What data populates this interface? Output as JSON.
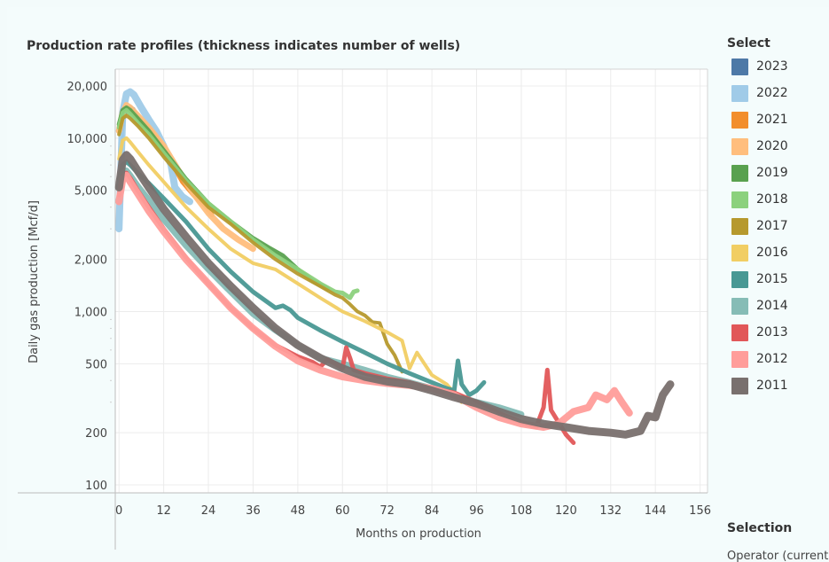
{
  "title": "Production rate profiles (thickness indicates number of wells)",
  "legend": {
    "title": "Select",
    "items": [
      {
        "label": "2023",
        "color": "#4e79a7"
      },
      {
        "label": "2022",
        "color": "#a0cbe8"
      },
      {
        "label": "2021",
        "color": "#f28e2b"
      },
      {
        "label": "2020",
        "color": "#ffbe7d"
      },
      {
        "label": "2019",
        "color": "#59a14f"
      },
      {
        "label": "2018",
        "color": "#8cd17d"
      },
      {
        "label": "2017",
        "color": "#b6992d"
      },
      {
        "label": "2016",
        "color": "#f1ce63"
      },
      {
        "label": "2015",
        "color": "#499894"
      },
      {
        "label": "2014",
        "color": "#86bcb6"
      },
      {
        "label": "2013",
        "color": "#e15759"
      },
      {
        "label": "2012",
        "color": "#ff9d9a"
      },
      {
        "label": "2011",
        "color": "#79706e"
      }
    ]
  },
  "selection": {
    "title": "Selection",
    "subtitle": "Operator (current"
  },
  "chart_data": {
    "type": "line",
    "title": "Production rate profiles (thickness indicates number of wells)",
    "xlabel": "Months on production",
    "ylabel": "Daily gas production [Mcf/d]",
    "y_scale": "log",
    "xlim": [
      -1,
      158
    ],
    "ylim": [
      90,
      25000
    ],
    "x_ticks": [
      0,
      12,
      24,
      36,
      48,
      60,
      72,
      84,
      96,
      108,
      120,
      132,
      144,
      156
    ],
    "x_tick_labels": [
      "0",
      "12",
      "24",
      "36",
      "48",
      "60",
      "72",
      "84",
      "96",
      "108",
      "120",
      "132",
      "144",
      "156"
    ],
    "y_ticks": [
      100,
      200,
      500,
      1000,
      2000,
      5000,
      10000,
      20000
    ],
    "y_tick_labels": [
      "100",
      "200",
      "500",
      "1,000",
      "2,000",
      "5,000",
      "10,000",
      "20,000"
    ],
    "grid": true,
    "legend_position": "right",
    "series": [
      {
        "name": "2011",
        "color": "#79706e",
        "width": 9,
        "x": [
          0,
          1,
          2,
          3,
          5,
          8,
          12,
          18,
          24,
          30,
          36,
          42,
          48,
          54,
          60,
          66,
          72,
          78,
          84,
          90,
          96,
          102,
          108,
          114,
          120,
          126,
          132,
          136,
          140,
          142,
          144,
          146,
          148
        ],
        "y": [
          5200,
          7500,
          8000,
          7600,
          6500,
          5200,
          3900,
          2700,
          1900,
          1400,
          1050,
          800,
          640,
          540,
          470,
          420,
          395,
          380,
          350,
          320,
          295,
          265,
          240,
          225,
          215,
          205,
          200,
          195,
          205,
          250,
          245,
          330,
          380
        ]
      },
      {
        "name": "2012",
        "color": "#ff9d9a",
        "width": 8,
        "x": [
          0,
          1,
          2,
          3,
          5,
          8,
          12,
          18,
          24,
          30,
          36,
          42,
          48,
          54,
          60,
          66,
          72,
          78,
          84,
          90,
          96,
          102,
          108,
          114,
          118,
          122,
          126,
          128,
          131,
          133,
          135,
          137
        ],
        "y": [
          4300,
          5800,
          6100,
          5600,
          4800,
          3800,
          2900,
          2000,
          1450,
          1050,
          800,
          630,
          520,
          460,
          420,
          400,
          385,
          375,
          360,
          330,
          280,
          245,
          225,
          215,
          225,
          265,
          280,
          330,
          310,
          350,
          300,
          260
        ]
      },
      {
        "name": "2013",
        "color": "#e15759",
        "width": 5,
        "x": [
          0,
          1,
          2,
          3,
          5,
          8,
          12,
          18,
          24,
          30,
          36,
          42,
          48,
          52,
          54,
          56,
          58,
          60,
          61,
          62,
          63,
          66,
          72,
          78,
          84,
          90,
          96,
          102,
          108,
          112,
          114,
          115,
          116,
          118,
          120,
          122
        ],
        "y": [
          4700,
          6000,
          6300,
          5900,
          5000,
          4000,
          3000,
          2050,
          1450,
          1050,
          800,
          640,
          550,
          510,
          480,
          530,
          500,
          470,
          620,
          540,
          460,
          440,
          410,
          390,
          360,
          340,
          300,
          260,
          230,
          215,
          280,
          460,
          270,
          230,
          195,
          175
        ]
      },
      {
        "name": "2014",
        "color": "#86bcb6",
        "width": 7,
        "x": [
          0,
          1,
          2,
          3,
          5,
          8,
          12,
          18,
          24,
          30,
          36,
          42,
          48,
          54,
          60,
          66,
          72,
          78,
          84,
          90,
          96,
          102,
          108
        ],
        "y": [
          5200,
          6300,
          6500,
          6100,
          5300,
          4400,
          3400,
          2400,
          1750,
          1300,
          970,
          780,
          640,
          540,
          500,
          460,
          420,
          390,
          360,
          330,
          300,
          280,
          255
        ]
      },
      {
        "name": "2015",
        "color": "#499894",
        "width": 5,
        "x": [
          0,
          1,
          2,
          3,
          5,
          8,
          12,
          18,
          24,
          30,
          36,
          42,
          44,
          46,
          48,
          54,
          60,
          66,
          72,
          78,
          84,
          88,
          90,
          91,
          92,
          94,
          96,
          98
        ],
        "y": [
          5800,
          7000,
          7300,
          7000,
          6300,
          5500,
          4500,
          3300,
          2300,
          1700,
          1300,
          1050,
          1080,
          1020,
          920,
          780,
          670,
          580,
          500,
          440,
          390,
          360,
          350,
          520,
          380,
          330,
          350,
          390
        ]
      },
      {
        "name": "2016",
        "color": "#f1ce63",
        "width": 4,
        "x": [
          0,
          1,
          2,
          3,
          5,
          8,
          12,
          18,
          24,
          30,
          36,
          42,
          48,
          54,
          60,
          66,
          72,
          76,
          78,
          80,
          84,
          88,
          90,
          92
        ],
        "y": [
          7600,
          9700,
          10000,
          9500,
          8400,
          7000,
          5600,
          4000,
          3000,
          2300,
          1900,
          1750,
          1450,
          1200,
          1000,
          880,
          760,
          680,
          470,
          580,
          430,
          380,
          340,
          300
        ]
      },
      {
        "name": "2017",
        "color": "#b6992d",
        "width": 4,
        "x": [
          0,
          1,
          2,
          3,
          5,
          8,
          12,
          18,
          24,
          30,
          36,
          42,
          48,
          54,
          58,
          60,
          62,
          64,
          66,
          68,
          70,
          72,
          74,
          76
        ],
        "y": [
          10500,
          13000,
          13500,
          13000,
          11800,
          10000,
          7800,
          5500,
          4000,
          3200,
          2500,
          2000,
          1650,
          1400,
          1250,
          1200,
          1100,
          1000,
          950,
          870,
          860,
          650,
          560,
          450
        ]
      },
      {
        "name": "2018",
        "color": "#8cd17d",
        "width": 5,
        "x": [
          0,
          1,
          2,
          3,
          5,
          8,
          12,
          18,
          24,
          30,
          36,
          42,
          48,
          54,
          58,
          60,
          62,
          63,
          64
        ],
        "y": [
          11500,
          14000,
          14500,
          13800,
          12300,
          10500,
          8200,
          5700,
          4200,
          3300,
          2600,
          2100,
          1750,
          1450,
          1300,
          1280,
          1200,
          1300,
          1320
        ]
      },
      {
        "name": "2019",
        "color": "#59a14f",
        "width": 5,
        "x": [
          0,
          1,
          2,
          3,
          5,
          8,
          12,
          18,
          24,
          30,
          36,
          40,
          44,
          48,
          52,
          56
        ],
        "y": [
          12000,
          14500,
          15000,
          14500,
          13000,
          11000,
          8500,
          5800,
          4200,
          3300,
          2650,
          2350,
          2100,
          1750,
          1500,
          1350
        ]
      },
      {
        "name": "2020",
        "color": "#ffbe7d",
        "width": 7,
        "x": [
          0,
          1,
          2,
          3,
          5,
          8,
          12,
          16,
          20,
          24,
          28,
          32,
          36
        ],
        "y": [
          11000,
          14000,
          15500,
          15000,
          13500,
          11500,
          9000,
          6500,
          4800,
          3700,
          3000,
          2600,
          2300
        ]
      },
      {
        "name": "2021",
        "color": "#f28e2b",
        "width": 5,
        "x": [
          0,
          1,
          2,
          3,
          5,
          8,
          11,
          14,
          17,
          20,
          23,
          25
        ],
        "y": [
          11500,
          14000,
          15000,
          14500,
          13200,
          11500,
          9500,
          7300,
          5600,
          4700,
          4100,
          3600
        ]
      },
      {
        "name": "2022",
        "color": "#a0cbe8",
        "width": 8,
        "x": [
          0,
          1,
          2,
          3,
          4,
          6,
          8,
          10,
          12,
          14,
          15,
          17,
          19
        ],
        "y": [
          3000,
          14000,
          18000,
          18500,
          17800,
          15000,
          12800,
          11000,
          9000,
          7000,
          5200,
          4600,
          4300
        ]
      },
      {
        "name": "2023",
        "color": "#4e79a7",
        "width": 3,
        "x": [
          0,
          1,
          2,
          3,
          4,
          5,
          6
        ],
        "y": [
          4200,
          11000,
          15000,
          15300,
          14800,
          13500,
          12600
        ]
      }
    ]
  }
}
